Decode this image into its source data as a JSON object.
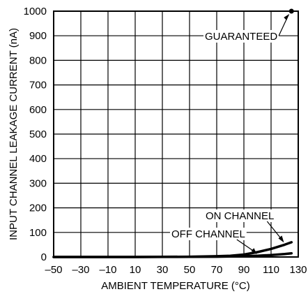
{
  "chart_data": {
    "type": "line",
    "title": "",
    "xlabel": "AMBIENT TEMPERATURE (°C)",
    "ylabel": "INPUT CHANNEL LEAKAGE CURRENT (nA)",
    "xlim": [
      -50,
      130
    ],
    "ylim": [
      0,
      1000
    ],
    "grid": true,
    "x_ticks": [
      -50,
      -30,
      -10,
      10,
      30,
      50,
      70,
      90,
      110,
      130
    ],
    "y_ticks": [
      0,
      100,
      200,
      300,
      400,
      500,
      600,
      700,
      800,
      900,
      1000
    ],
    "x_tick_labels": [
      "–50",
      "–30",
      "–10",
      "10",
      "30",
      "50",
      "70",
      "90",
      "110",
      "130"
    ],
    "y_tick_labels": [
      "0",
      "100",
      "200",
      "300",
      "400",
      "500",
      "600",
      "700",
      "800",
      "900",
      "1000"
    ],
    "series": [
      {
        "name": "ON CHANNEL",
        "x": [
          -50,
          -30,
          -10,
          10,
          30,
          50,
          70,
          80,
          90,
          100,
          110,
          120,
          125
        ],
        "y": [
          0,
          0,
          0,
          0,
          0.5,
          1,
          3,
          5,
          10,
          20,
          33,
          50,
          60
        ]
      },
      {
        "name": "OFF CHANNEL",
        "x": [
          -50,
          -30,
          -10,
          10,
          30,
          50,
          70,
          80,
          90,
          100,
          110,
          120,
          125
        ],
        "y": [
          0,
          0,
          0,
          0,
          0.2,
          0.5,
          1,
          2,
          3,
          5,
          8,
          12,
          15
        ]
      }
    ],
    "guaranteed_point": {
      "x": 125,
      "y": 1000
    },
    "annotations": [
      {
        "text": "GUARANTEED",
        "target": "guaranteed"
      },
      {
        "text": "ON CHANNEL",
        "target": "on"
      },
      {
        "text": "OFF CHANNEL",
        "target": "off"
      }
    ]
  }
}
